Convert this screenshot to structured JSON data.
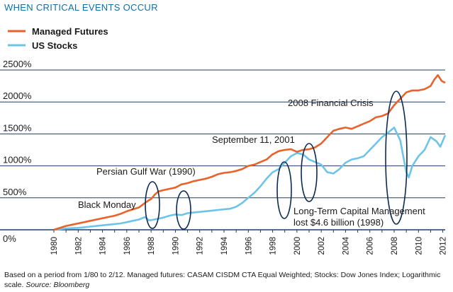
{
  "chart_data": {
    "type": "line",
    "title": "WHEN CRITICAL EVENTS OCCUR",
    "y_scale_note": "Logarithmic scale",
    "ylim": [
      0,
      2500
    ],
    "y_ticks": [
      "0%",
      "500%",
      "1000%",
      "1500%",
      "2000%",
      "2500%"
    ],
    "y_tick_values": [
      0,
      500,
      1000,
      1500,
      2000,
      2500
    ],
    "xlim": [
      1980,
      2012.2
    ],
    "x_ticks": [
      "1980",
      "1982",
      "1984",
      "1986",
      "1988",
      "1990",
      "1992",
      "1994",
      "1996",
      "1998",
      "2000",
      "2002",
      "2004",
      "2006",
      "2008",
      "2010",
      "2012"
    ],
    "grid": "horizontal",
    "legend_position": "top-left",
    "series": [
      {
        "name": "Managed Futures",
        "color": "#e8622a",
        "points": [
          [
            1980.0,
            0
          ],
          [
            1980.5,
            30
          ],
          [
            1981.0,
            60
          ],
          [
            1981.5,
            80
          ],
          [
            1982.0,
            100
          ],
          [
            1982.5,
            120
          ],
          [
            1983.0,
            140
          ],
          [
            1983.5,
            160
          ],
          [
            1984.0,
            180
          ],
          [
            1984.5,
            200
          ],
          [
            1985.0,
            220
          ],
          [
            1985.5,
            250
          ],
          [
            1986.0,
            290
          ],
          [
            1986.5,
            320
          ],
          [
            1987.0,
            350
          ],
          [
            1987.5,
            420
          ],
          [
            1987.8,
            460
          ],
          [
            1988.0,
            480
          ],
          [
            1988.3,
            550
          ],
          [
            1988.6,
            600
          ],
          [
            1989.0,
            620
          ],
          [
            1989.5,
            640
          ],
          [
            1990.0,
            660
          ],
          [
            1990.5,
            710
          ],
          [
            1991.0,
            730
          ],
          [
            1991.5,
            760
          ],
          [
            1992.0,
            780
          ],
          [
            1992.5,
            800
          ],
          [
            1993.0,
            830
          ],
          [
            1993.5,
            870
          ],
          [
            1994.0,
            890
          ],
          [
            1994.5,
            900
          ],
          [
            1995.0,
            920
          ],
          [
            1995.5,
            950
          ],
          [
            1996.0,
            1000
          ],
          [
            1996.5,
            1020
          ],
          [
            1997.0,
            1060
          ],
          [
            1997.5,
            1100
          ],
          [
            1998.0,
            1180
          ],
          [
            1998.5,
            1230
          ],
          [
            1999.0,
            1250
          ],
          [
            1999.5,
            1260
          ],
          [
            2000.0,
            1220
          ],
          [
            2000.5,
            1250
          ],
          [
            2001.0,
            1260
          ],
          [
            2001.5,
            1290
          ],
          [
            2002.0,
            1350
          ],
          [
            2002.5,
            1450
          ],
          [
            2003.0,
            1550
          ],
          [
            2003.5,
            1580
          ],
          [
            2004.0,
            1600
          ],
          [
            2004.5,
            1580
          ],
          [
            2005.0,
            1620
          ],
          [
            2005.5,
            1660
          ],
          [
            2006.0,
            1700
          ],
          [
            2006.5,
            1760
          ],
          [
            2007.0,
            1780
          ],
          [
            2007.5,
            1820
          ],
          [
            2008.0,
            1950
          ],
          [
            2008.5,
            2050
          ],
          [
            2009.0,
            2150
          ],
          [
            2009.5,
            2180
          ],
          [
            2010.0,
            2180
          ],
          [
            2010.5,
            2200
          ],
          [
            2011.0,
            2250
          ],
          [
            2011.3,
            2350
          ],
          [
            2011.6,
            2420
          ],
          [
            2011.9,
            2330
          ],
          [
            2012.2,
            2300
          ]
        ]
      },
      {
        "name": "US Stocks",
        "color": "#6ec3ea",
        "points": [
          [
            1980.0,
            0
          ],
          [
            1980.5,
            10
          ],
          [
            1981.0,
            20
          ],
          [
            1981.5,
            25
          ],
          [
            1982.0,
            30
          ],
          [
            1982.5,
            40
          ],
          [
            1983.0,
            50
          ],
          [
            1983.5,
            60
          ],
          [
            1984.0,
            70
          ],
          [
            1984.5,
            80
          ],
          [
            1985.0,
            90
          ],
          [
            1985.5,
            100
          ],
          [
            1986.0,
            120
          ],
          [
            1986.5,
            140
          ],
          [
            1987.0,
            160
          ],
          [
            1987.5,
            200
          ],
          [
            1987.8,
            150
          ],
          [
            1988.0,
            150
          ],
          [
            1988.5,
            170
          ],
          [
            1989.0,
            190
          ],
          [
            1989.5,
            220
          ],
          [
            1990.0,
            240
          ],
          [
            1990.5,
            230
          ],
          [
            1991.0,
            260
          ],
          [
            1991.5,
            270
          ],
          [
            1992.0,
            280
          ],
          [
            1992.5,
            290
          ],
          [
            1993.0,
            300
          ],
          [
            1993.5,
            310
          ],
          [
            1994.0,
            320
          ],
          [
            1994.5,
            330
          ],
          [
            1995.0,
            360
          ],
          [
            1995.5,
            420
          ],
          [
            1996.0,
            500
          ],
          [
            1996.5,
            580
          ],
          [
            1997.0,
            680
          ],
          [
            1997.5,
            800
          ],
          [
            1998.0,
            900
          ],
          [
            1998.5,
            950
          ],
          [
            1999.0,
            1050
          ],
          [
            1999.5,
            1150
          ],
          [
            2000.0,
            1200
          ],
          [
            2000.5,
            1180
          ],
          [
            2001.0,
            1100
          ],
          [
            2001.5,
            1060
          ],
          [
            2002.0,
            1020
          ],
          [
            2002.5,
            900
          ],
          [
            2003.0,
            880
          ],
          [
            2003.5,
            950
          ],
          [
            2004.0,
            1050
          ],
          [
            2004.5,
            1100
          ],
          [
            2005.0,
            1120
          ],
          [
            2005.5,
            1150
          ],
          [
            2006.0,
            1250
          ],
          [
            2006.5,
            1350
          ],
          [
            2007.0,
            1450
          ],
          [
            2007.5,
            1520
          ],
          [
            2008.0,
            1600
          ],
          [
            2008.5,
            1400
          ],
          [
            2008.8,
            1100
          ],
          [
            2009.0,
            900
          ],
          [
            2009.2,
            820
          ],
          [
            2009.5,
            1000
          ],
          [
            2010.0,
            1150
          ],
          [
            2010.5,
            1250
          ],
          [
            2011.0,
            1450
          ],
          [
            2011.5,
            1380
          ],
          [
            2011.8,
            1300
          ],
          [
            2012.2,
            1480
          ]
        ]
      }
    ],
    "annotations": [
      {
        "label": "Black Monday",
        "year": 1987.8,
        "value": 330
      },
      {
        "label": "Persian Gulf War (1990)",
        "year": 1990.6,
        "value": 380
      },
      {
        "label": "Long-Term Capital Management lost $4.6 billion (1998)",
        "year": 1998.9,
        "value": 780
      },
      {
        "label": "September 11, 2001",
        "year": 2001.2,
        "value": 1040
      },
      {
        "label": "2008 Financial Crisis",
        "year": 2008.7,
        "value": 1270
      }
    ],
    "labels": {
      "black_monday": "Black Monday",
      "persian_gulf": "Persian Gulf War (1990)",
      "ltcm_line1": "Long-Term Capital Management",
      "ltcm_line2": "lost $4.6 billion (1998)",
      "sept11": "September 11, 2001",
      "crisis_2008": "2008 Financial Crisis"
    },
    "footnote": {
      "line1": "Based on a period from 1/80 to 2/12. Managed futures: CASAM CISDM CTA Equal Weighted; Stocks: Dow Jones Index; Logarithmic",
      "line2_plain": "scale. ",
      "line2_italic": "Source: Bloomberg"
    }
  }
}
